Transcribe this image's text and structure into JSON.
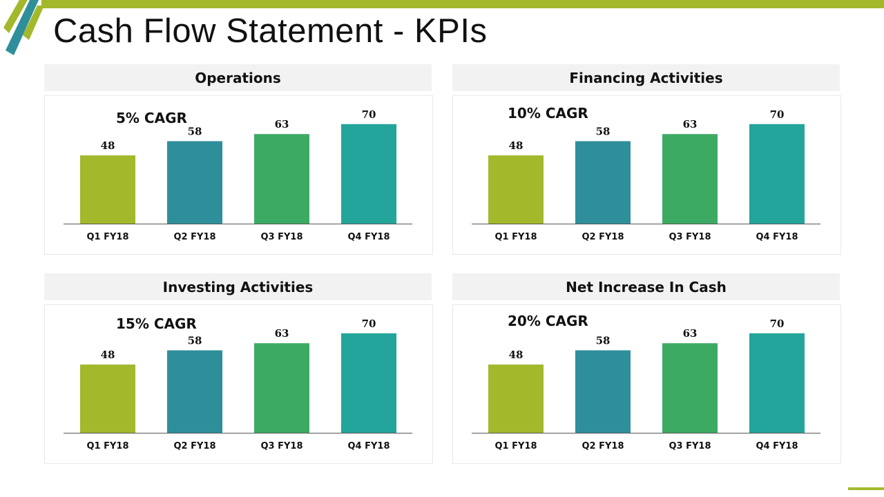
{
  "title": "Cash Flow Statement - KPIs",
  "colors": {
    "accent": "#a3b82b",
    "accent_dark": "#2e8f9a",
    "bar_colors": [
      "#a3b82b",
      "#2e8f9a",
      "#3daa63",
      "#23a59b"
    ],
    "header_bg": "#f2f2f2"
  },
  "panels": [
    {
      "header": "Operations",
      "cagr": "5% CAGR"
    },
    {
      "header": "Financing Activities",
      "cagr": "10% CAGR"
    },
    {
      "header": "Investing Activities",
      "cagr": "15% CAGR"
    },
    {
      "header": "Net Increase In Cash",
      "cagr": "20% CAGR"
    }
  ],
  "chart_data": [
    {
      "type": "bar",
      "title": "Operations",
      "annotation": "5% CAGR",
      "categories": [
        "Q1 FY18",
        "Q2 FY18",
        "Q3 FY18",
        "Q4 FY18"
      ],
      "values": [
        48,
        58,
        63,
        70
      ],
      "ylim": [
        0,
        70
      ],
      "grid": false
    },
    {
      "type": "bar",
      "title": "Financing Activities",
      "annotation": "10% CAGR",
      "categories": [
        "Q1 FY18",
        "Q2 FY18",
        "Q3 FY18",
        "Q4 FY18"
      ],
      "values": [
        48,
        58,
        63,
        70
      ],
      "ylim": [
        0,
        70
      ],
      "grid": false
    },
    {
      "type": "bar",
      "title": "Investing Activities",
      "annotation": "15% CAGR",
      "categories": [
        "Q1 FY18",
        "Q2 FY18",
        "Q3 FY18",
        "Q4 FY18"
      ],
      "values": [
        48,
        58,
        63,
        70
      ],
      "ylim": [
        0,
        70
      ],
      "grid": false
    },
    {
      "type": "bar",
      "title": "Net Increase In Cash",
      "annotation": "20% CAGR",
      "categories": [
        "Q1 FY18",
        "Q2 FY18",
        "Q3 FY18",
        "Q4 FY18"
      ],
      "values": [
        48,
        58,
        63,
        70
      ],
      "ylim": [
        0,
        70
      ],
      "grid": false
    }
  ]
}
